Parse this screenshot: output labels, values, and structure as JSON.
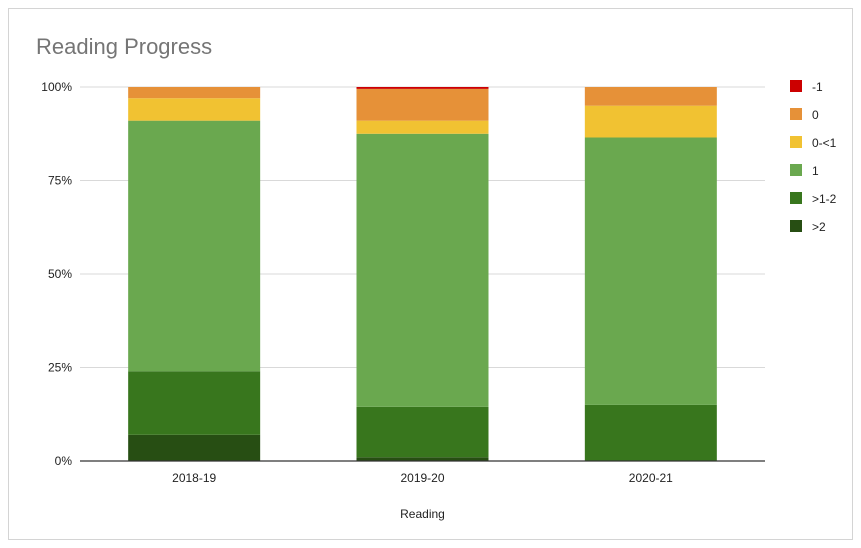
{
  "chart_data": {
    "type": "bar",
    "stacked": true,
    "title": "Reading Progress",
    "xlabel": "Reading",
    "ylabel": "",
    "ylim": [
      0,
      100
    ],
    "yticks": [
      "0%",
      "25%",
      "50%",
      "75%",
      "100%"
    ],
    "categories": [
      "2018-19",
      "2019-20",
      "2020-21"
    ],
    "series": [
      {
        "name": ">2",
        "color": "#274e13",
        "values": [
          7,
          1,
          0
        ]
      },
      {
        "name": ">1-2",
        "color": "#38761d",
        "values": [
          17,
          13.5,
          15
        ]
      },
      {
        "name": "1",
        "color": "#6aa84f",
        "values": [
          67,
          73,
          71.5
        ]
      },
      {
        "name": "0-<1",
        "color": "#f1c232",
        "values": [
          6,
          3.5,
          8.5
        ]
      },
      {
        "name": "0",
        "color": "#e69138",
        "values": [
          3,
          8.5,
          5
        ]
      },
      {
        "name": "-1",
        "color": "#cc0000",
        "values": [
          0,
          0.5,
          0
        ]
      }
    ],
    "legend_order": [
      "-1",
      "0",
      "0-<1",
      "1",
      ">1-2",
      ">2"
    ],
    "legend_position": "right",
    "grid": true
  }
}
